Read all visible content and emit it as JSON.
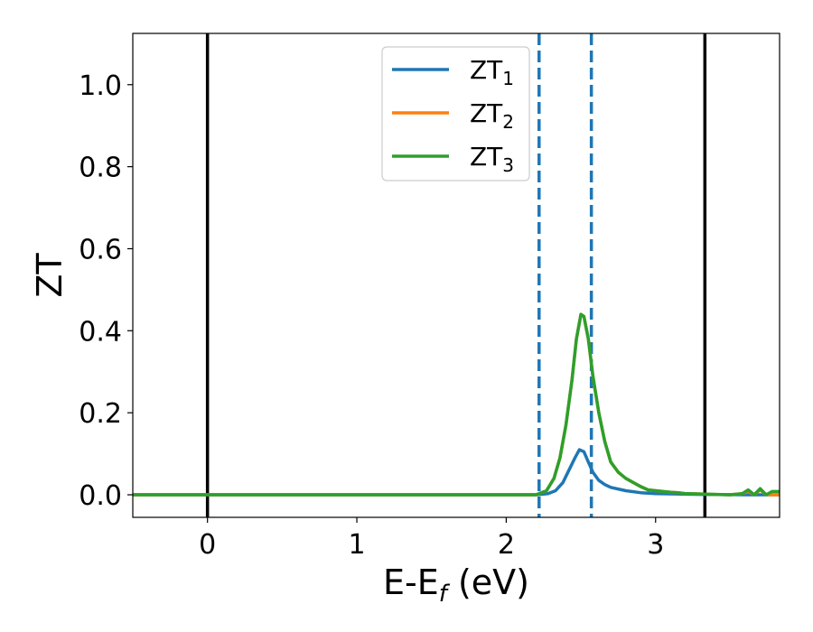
{
  "chart_data": {
    "type": "line",
    "xlabel": "E-E",
    "xlabel_sub": "f",
    "xlabel_unit": " (eV)",
    "ylabel": "ZT",
    "xlim": [
      -0.5,
      3.83
    ],
    "ylim": [
      -0.055,
      1.125
    ],
    "xticks": [
      0,
      1,
      2,
      3
    ],
    "xtick_labels": [
      "0",
      "1",
      "2",
      "3"
    ],
    "yticks": [
      0.0,
      0.2,
      0.4,
      0.6,
      0.8,
      1.0
    ],
    "ytick_labels": [
      "0.0",
      "0.2",
      "0.4",
      "0.6",
      "0.8",
      "1.0"
    ],
    "grid": false,
    "legend_position": "top-center",
    "vlines": [
      {
        "x": 0.0,
        "style": "solid",
        "color": "#000000"
      },
      {
        "x": 3.33,
        "style": "solid",
        "color": "#000000"
      },
      {
        "x": 2.22,
        "style": "dashed",
        "color": "#1f77b4"
      },
      {
        "x": 2.57,
        "style": "dashed",
        "color": "#1f77b4"
      }
    ],
    "series": [
      {
        "name": "ZT",
        "sub": "1",
        "color": "#1f77b4",
        "x": [
          -0.5,
          2.2,
          2.28,
          2.33,
          2.38,
          2.42,
          2.46,
          2.49,
          2.52,
          2.55,
          2.58,
          2.62,
          2.66,
          2.7,
          2.8,
          2.9,
          3.0,
          3.3,
          3.6,
          3.83
        ],
        "y": [
          0.0,
          0.0,
          0.003,
          0.01,
          0.03,
          0.06,
          0.09,
          0.11,
          0.105,
          0.08,
          0.055,
          0.035,
          0.025,
          0.018,
          0.01,
          0.005,
          0.003,
          0.001,
          0.0,
          0.0
        ]
      },
      {
        "name": "ZT",
        "sub": "2",
        "color": "#ff7f0e",
        "x": [
          -0.5,
          2.2,
          2.27,
          2.32,
          2.36,
          2.4,
          2.44,
          2.47,
          2.5,
          2.52,
          2.55,
          2.58,
          2.62,
          2.66,
          2.7,
          2.75,
          2.8,
          2.85,
          2.9,
          2.95,
          3.0,
          3.05,
          3.1,
          3.15,
          3.2,
          3.3,
          3.4,
          3.5,
          3.58,
          3.62,
          3.66,
          3.7,
          3.74,
          3.78,
          3.83
        ],
        "y": [
          0.0,
          0.0,
          0.01,
          0.04,
          0.09,
          0.17,
          0.28,
          0.38,
          0.44,
          0.435,
          0.38,
          0.29,
          0.2,
          0.13,
          0.08,
          0.055,
          0.04,
          0.03,
          0.02,
          0.012,
          0.01,
          0.008,
          0.006,
          0.005,
          0.003,
          0.002,
          0.001,
          0.0,
          0.003,
          0.008,
          0.0,
          0.012,
          0.0,
          0.0,
          0.0
        ]
      },
      {
        "name": "ZT",
        "sub": "3",
        "color": "#2ca02c",
        "x": [
          -0.5,
          2.2,
          2.27,
          2.32,
          2.36,
          2.4,
          2.44,
          2.47,
          2.5,
          2.52,
          2.55,
          2.58,
          2.62,
          2.66,
          2.7,
          2.75,
          2.8,
          2.85,
          2.9,
          2.95,
          3.0,
          3.05,
          3.1,
          3.15,
          3.2,
          3.3,
          3.4,
          3.5,
          3.58,
          3.62,
          3.66,
          3.7,
          3.74,
          3.78,
          3.83
        ],
        "y": [
          0.0,
          0.0,
          0.01,
          0.04,
          0.09,
          0.17,
          0.28,
          0.38,
          0.44,
          0.435,
          0.38,
          0.29,
          0.2,
          0.13,
          0.08,
          0.055,
          0.04,
          0.03,
          0.02,
          0.012,
          0.01,
          0.008,
          0.006,
          0.005,
          0.003,
          0.002,
          0.001,
          0.0,
          0.003,
          0.012,
          0.0,
          0.015,
          0.0,
          0.008,
          0.008
        ]
      }
    ]
  }
}
